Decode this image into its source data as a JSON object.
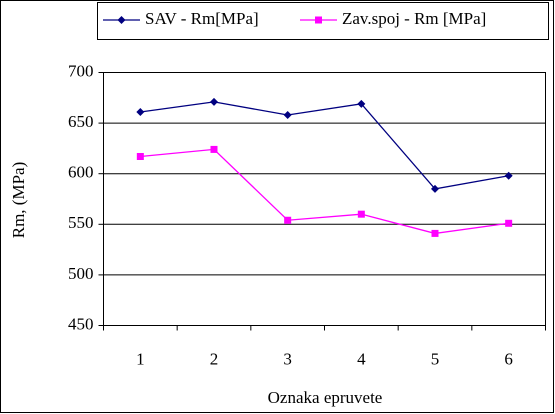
{
  "chart_data": {
    "type": "line",
    "x_label": "Oznaka epruvete",
    "y_label": "Rm, (MPa)",
    "categories": [
      "1",
      "2",
      "3",
      "4",
      "5",
      "6"
    ],
    "series": [
      {
        "name": "SAV - Rm[MPa]",
        "color": "#000080",
        "marker": "diamond",
        "values": [
          661,
          671,
          658,
          669,
          585,
          598
        ]
      },
      {
        "name": "Zav.spoj - Rm [MPa]",
        "color": "#ff00ff",
        "marker": "square",
        "values": [
          617,
          624,
          554,
          560,
          541,
          551
        ]
      }
    ],
    "ylim": [
      450,
      700
    ],
    "yticks": [
      450,
      500,
      550,
      600,
      650,
      700
    ],
    "grid": true,
    "legend": "top"
  }
}
